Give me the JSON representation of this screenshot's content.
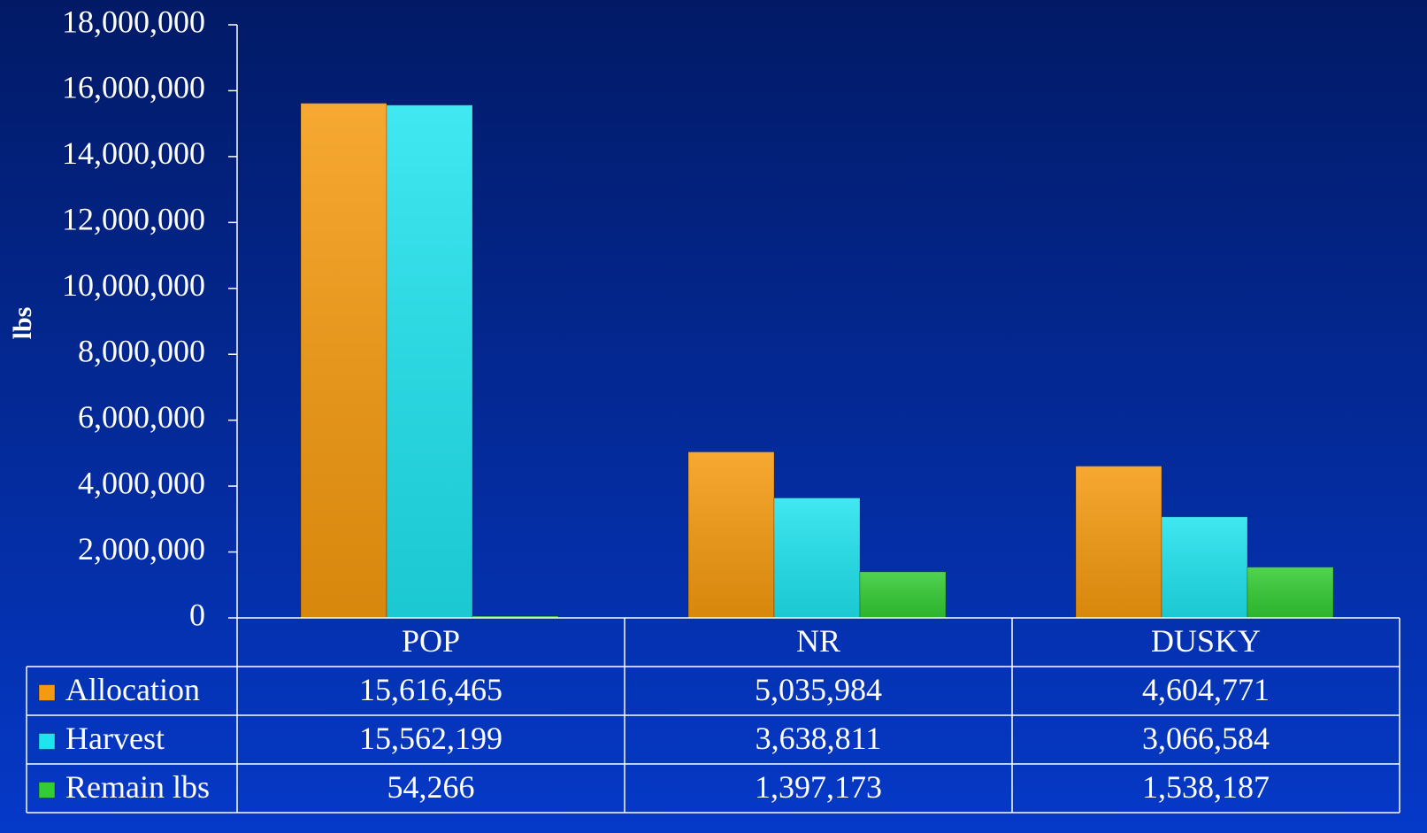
{
  "chart_data": {
    "type": "bar",
    "y_axis_label": "lbs",
    "categories": [
      "POP",
      "NR",
      "DUSKY"
    ],
    "series": [
      {
        "name": "Allocation",
        "color": "#f59a0e",
        "values": [
          15616465,
          5035984,
          4604771
        ],
        "value_labels": [
          "15,616,465",
          "5,035,984",
          "4,604,771"
        ]
      },
      {
        "name": "Harvest",
        "color": "#1fe4ef",
        "values": [
          15562199,
          3638811,
          3066584
        ],
        "value_labels": [
          "15,562,199",
          "3,638,811",
          "3,066,584"
        ]
      },
      {
        "name": "Remain lbs",
        "color": "#33cc33",
        "values": [
          54266,
          1397173,
          1538187
        ],
        "value_labels": [
          "54,266",
          "1,397,173",
          "1,538,187"
        ]
      }
    ],
    "ylim": [
      0,
      18000000
    ],
    "yticks": [
      0,
      {
        "value": 2000000,
        "label": "2,000,000"
      },
      {
        "value": 4000000,
        "label": "4,000,000"
      },
      {
        "value": 6000000,
        "label": "6,000,000"
      },
      {
        "value": 8000000,
        "label": "8,000,000"
      },
      {
        "value": 10000000,
        "label": "10,000,000"
      },
      {
        "value": 12000000,
        "label": "12,000,000"
      },
      {
        "value": 14000000,
        "label": "14,000,000"
      },
      {
        "value": 16000000,
        "label": "16,000,000"
      },
      {
        "value": 18000000,
        "label": "18,000,000"
      }
    ],
    "data_table": true
  }
}
